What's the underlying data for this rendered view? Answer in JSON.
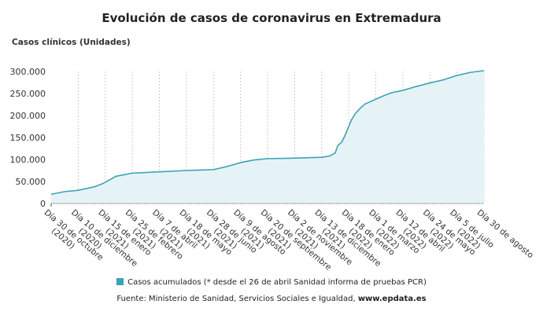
{
  "chart_data": {
    "type": "area",
    "title": "Evolución de casos de coronavirus en Extremadura",
    "ylabel": "Casos clínicos (Unidades)",
    "ylim": [
      0,
      300000
    ],
    "yticks": [
      "0",
      "50.000",
      "100.000",
      "150.000",
      "200.000",
      "250.000",
      "300.000"
    ],
    "xtick_labels": [
      [
        "Día 30 de octubre",
        "(2020)"
      ],
      [
        "Día 10 de diciembre",
        "(2020)"
      ],
      [
        "Día 15 de enero",
        "(2021)"
      ],
      [
        "Día 25 de febrero",
        "(2021)"
      ],
      [
        "Día 7 de abril",
        "(2021)"
      ],
      [
        "Día 18 de mayo",
        "(2021)"
      ],
      [
        "Día 28 de junio",
        "(2021)"
      ],
      [
        "Día 9 de agosto",
        "(2021)"
      ],
      [
        "Día 20 de septiembre",
        "(2021)"
      ],
      [
        "Día 2 de noviembre",
        "(2021)"
      ],
      [
        "Día 13 de diciembre",
        "(2021)"
      ],
      [
        "Día 18 de enero",
        "(2022)"
      ],
      [
        "Día 1 de marzo",
        "(2022)"
      ],
      [
        "Día 12 de abril",
        "(2022)"
      ],
      [
        "Día 24 de mayo",
        "(2022)"
      ],
      [
        "Día 5 de julio",
        "(2022)"
      ],
      [
        "Día 30 de agosto",
        ""
      ]
    ],
    "series": [
      {
        "name": "Casos acumulados (* desde el 26 de abril Sanidad informa de pruebas PCR)",
        "x": [
          0,
          0.5,
          1,
          1.6,
          1.9,
          2.2,
          2.4,
          3,
          4,
          5,
          6,
          6.5,
          7,
          7.5,
          8,
          9,
          10,
          10.3,
          10.5,
          10.6,
          10.75,
          10.9,
          11,
          11.1,
          11.25,
          11.45,
          11.6,
          12,
          12.3,
          12.6,
          13,
          13.5,
          14,
          14.5,
          15,
          15.5,
          16
        ],
        "values": [
          21000,
          27000,
          30000,
          38000,
          45000,
          55000,
          62000,
          69000,
          72000,
          75000,
          77000,
          84000,
          93000,
          99000,
          102000,
          103000,
          105000,
          108000,
          115000,
          132000,
          140000,
          160000,
          175000,
          190000,
          205000,
          218000,
          226000,
          237000,
          245000,
          252000,
          257000,
          266000,
          274000,
          281000,
          291000,
          298000,
          302000
        ]
      }
    ],
    "legend": "bottom",
    "grid": "vertical dashed",
    "colors": {
      "line": "#3aa3b5",
      "fill": "#e6f3f6"
    }
  },
  "source": "Fuente: Ministerio de Sanidad, Servicios Sociales e Igualdad, ",
  "source_link": "www.epdata.es"
}
